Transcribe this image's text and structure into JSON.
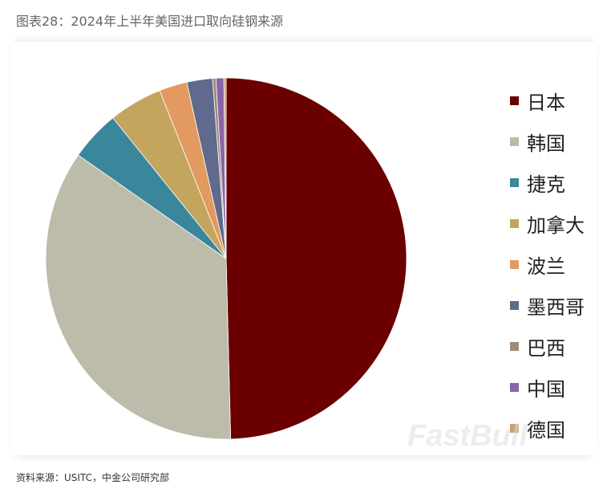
{
  "title": "图表28：2024年上半年美国进口取向硅钢来源",
  "source": "资料来源：USITC，中金公司研究部",
  "watermark": "FastBull",
  "chart_data": {
    "type": "pie",
    "title": "图表28：2024年上半年美国进口取向硅钢来源",
    "legend_position": "right",
    "categories": [
      "日本",
      "韩国",
      "捷克",
      "加拿大",
      "波兰",
      "墨西哥",
      "巴西",
      "中国",
      "德国"
    ],
    "values": [
      49.6,
      35.1,
      4.5,
      4.8,
      2.5,
      2.3,
      0.3,
      0.7,
      0.2
    ],
    "colors": [
      "#6b0000",
      "#bdbcaa",
      "#3a879c",
      "#c4a55e",
      "#e39a60",
      "#5f6a8c",
      "#a08a78",
      "#8a64a8",
      "#c8a070"
    ],
    "unit": "%"
  }
}
